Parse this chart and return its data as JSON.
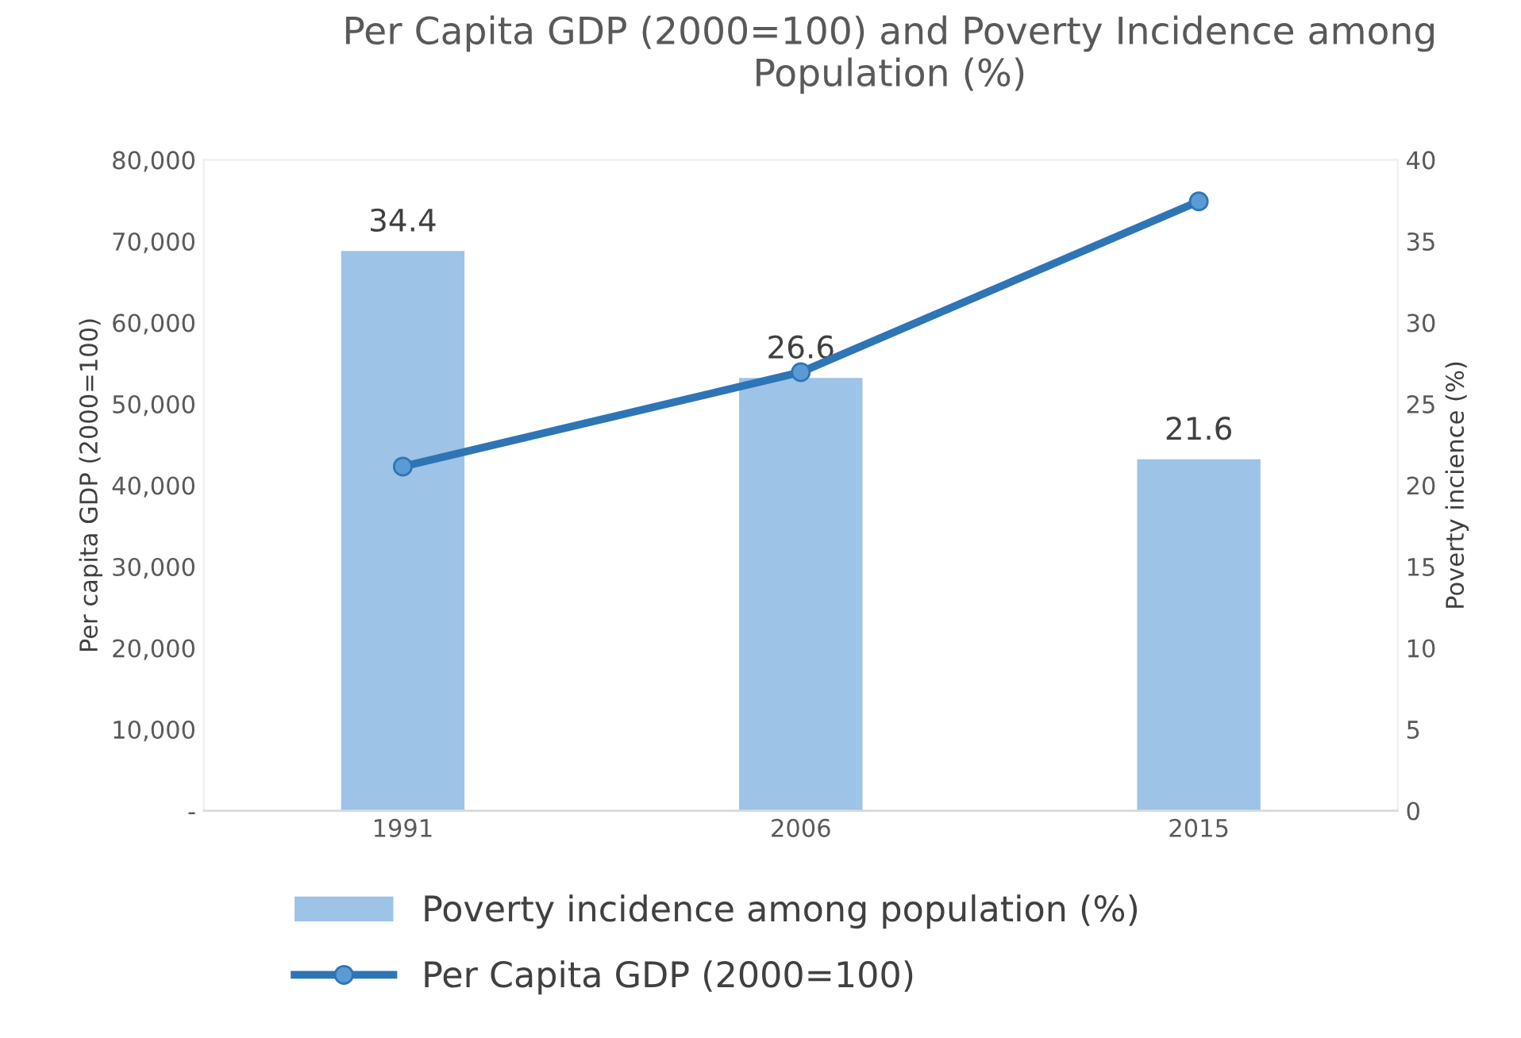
{
  "chart_data": {
    "type": "bar",
    "title": "Per Capita GDP (2000=100) and Poverty Incidence among Population (%)",
    "ylabel": "Per capita GDP (2000=100)",
    "y2label": "Poverty incience (%)",
    "categories": [
      "1991",
      "2006",
      "2015"
    ],
    "series": [
      {
        "name": "Poverty incidence among population (%)",
        "axis": "y2",
        "color": "#9dc3e6",
        "values": [
          34.4,
          26.6,
          21.6
        ],
        "value_labels": [
          "34.4",
          "26.6",
          "21.6"
        ]
      },
      {
        "name": "Per Capita GDP (2000=100)",
        "type": "line",
        "color": "#2e75b6",
        "values": [
          42300,
          53900,
          74900
        ],
        "marker": "circle"
      }
    ],
    "ylim": [
      0,
      80000
    ],
    "yticks": [
      {
        "value": 0,
        "label": "-"
      },
      {
        "value": 10000,
        "label": "10,000"
      },
      {
        "value": 20000,
        "label": "20,000"
      },
      {
        "value": 30000,
        "label": "30,000"
      },
      {
        "value": 40000,
        "label": "40,000"
      },
      {
        "value": 50000,
        "label": "50,000"
      },
      {
        "value": 60000,
        "label": "60,000"
      },
      {
        "value": 70000,
        "label": "70,000"
      },
      {
        "value": 80000,
        "label": "80,000"
      }
    ],
    "y2lim": [
      0,
      40
    ],
    "y2ticks": [
      0,
      5,
      10,
      15,
      20,
      25,
      30,
      35,
      40
    ],
    "legend": "bottom",
    "grid": false
  }
}
